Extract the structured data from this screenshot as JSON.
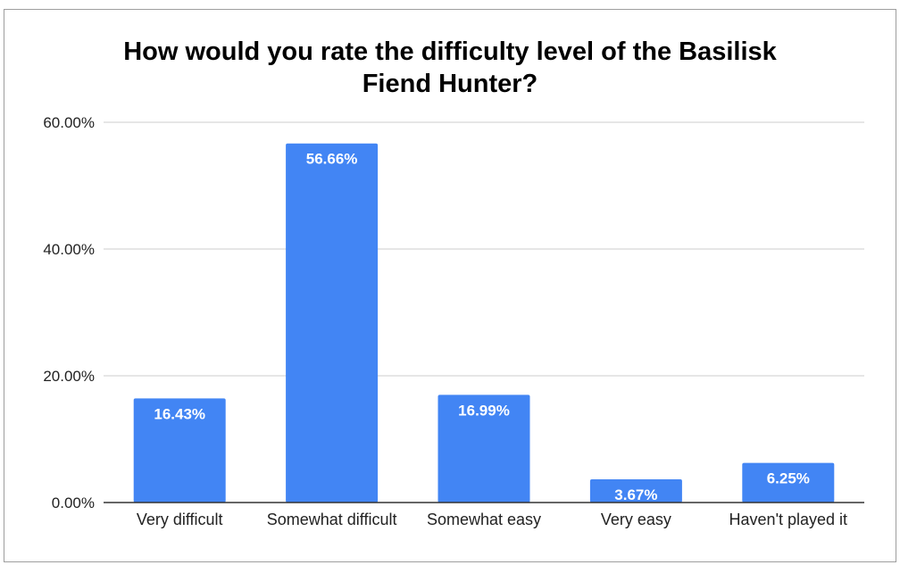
{
  "chart_data": {
    "type": "bar",
    "title_lines": [
      "How would you rate the difficulty level of the Basilisk",
      "Fiend Hunter?"
    ],
    "categories": [
      "Very difficult",
      "Somewhat difficult",
      "Somewhat easy",
      "Very easy",
      "Haven't played it"
    ],
    "values": [
      16.43,
      56.66,
      16.99,
      3.67,
      6.25
    ],
    "data_labels": [
      "16.43%",
      "56.66%",
      "16.99%",
      "3.67%",
      "6.25%"
    ],
    "xlabel": "",
    "ylabel": "",
    "ylim": [
      0,
      60
    ],
    "y_ticks": [
      {
        "value": 0,
        "label": "0.00%"
      },
      {
        "value": 20,
        "label": "20.00%"
      },
      {
        "value": 40,
        "label": "40.00%"
      },
      {
        "value": 60,
        "label": "60.00%"
      }
    ],
    "grid": true,
    "legend": "none",
    "colors": {
      "bar": "#4285f4",
      "grid": "#cccccc",
      "axis": "#333333"
    }
  }
}
